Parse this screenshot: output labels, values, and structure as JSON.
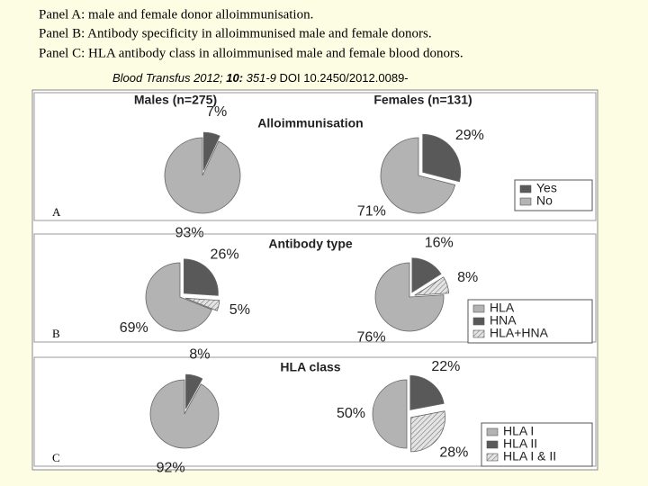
{
  "caption": [
    "Panel A: male and female donor alloimmunisation.",
    "Panel B: Antibody specificity in alloimmunised male and female donors.",
    "Panel C: HLA antibody class in alloimmunised male and female blood donors."
  ],
  "citation": [
    "Blood Transfus 2012; ",
    "10:",
    " 351-9 ",
    "DOI 10.2450/2012.0089-"
  ],
  "columns": [
    "Males (n=275)",
    "Females (n=131)"
  ],
  "chart_data": [
    {
      "type": "pie",
      "label": "A",
      "title": "Alloimmunisation",
      "categories": [
        "Yes",
        "No"
      ],
      "colors": [
        "#595959",
        "#b3b3b3"
      ],
      "series": [
        {
          "values": [
            7,
            93
          ],
          "value_labels": [
            "7%",
            "93%"
          ]
        },
        {
          "values": [
            29,
            71
          ],
          "value_labels": [
            "29%",
            "71%"
          ]
        }
      ]
    },
    {
      "type": "pie",
      "label": "B",
      "title": "Antibody type",
      "categories": [
        "HLA",
        "HNA",
        "HLA+HNA"
      ],
      "colors": [
        "#b3b3b3",
        "#595959",
        "#dcdcdc"
      ],
      "series": [
        {
          "values": [
            69,
            26,
            5
          ],
          "value_labels": [
            "69%",
            "26%",
            "5%"
          ]
        },
        {
          "values": [
            76,
            16,
            8
          ],
          "value_labels": [
            "76%",
            "16%",
            "8%"
          ]
        }
      ]
    },
    {
      "type": "pie",
      "label": "C",
      "title": "HLA class",
      "categories": [
        "HLA I",
        "HLA II",
        "HLA I & II"
      ],
      "colors": [
        "#b3b3b3",
        "#595959",
        "#dcdcdc"
      ],
      "series": [
        {
          "values": [
            92,
            8,
            null
          ],
          "value_labels": [
            "92%",
            "8%",
            null
          ]
        },
        {
          "values": [
            50,
            22,
            28
          ],
          "value_labels": [
            "50%",
            "22%",
            "28%"
          ]
        }
      ]
    }
  ]
}
